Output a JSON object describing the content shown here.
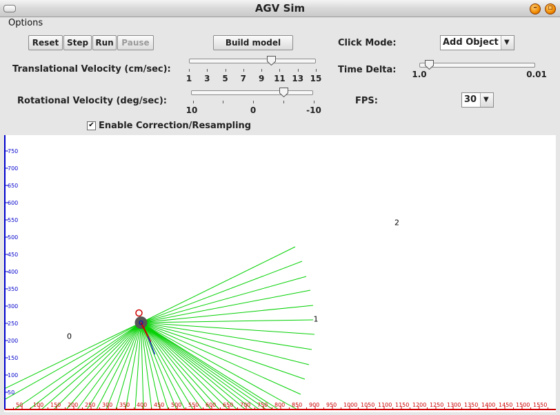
{
  "window": {
    "title": "AGV Sim"
  },
  "menu": {
    "options": "Options"
  },
  "buttons": {
    "reset": "Reset",
    "step": "Step",
    "run": "Run",
    "pause": "Pause",
    "build_model": "Build model"
  },
  "translational": {
    "label": "Translational Velocity (cm/sec):",
    "ticks": [
      "1",
      "3",
      "5",
      "7",
      "9",
      "11",
      "13",
      "15"
    ],
    "value": 10
  },
  "rotational": {
    "label": "Rotational Velocity (deg/sec):",
    "ticks": [
      "10",
      "0",
      "-10"
    ],
    "value": -5
  },
  "click_mode": {
    "label": "Click Mode:",
    "selected": "Add Object"
  },
  "time_delta": {
    "label": "Time Delta:",
    "min_label": "1.0",
    "max_label": "0.01",
    "value": 0.9
  },
  "fps": {
    "label": "FPS:",
    "selected": "30"
  },
  "correction": {
    "label": "Enable Correction/Resampling",
    "checked": true,
    "check_glyph": "✔"
  },
  "icons": {
    "menu": "window-menu-icon",
    "minimize": "minimize-icon",
    "maximize": "maximize-icon",
    "dropdown": "chevron-down-icon"
  },
  "sim": {
    "y_ticks": [
      "750",
      "700",
      "650",
      "600",
      "550",
      "500",
      "450",
      "400",
      "350",
      "300",
      "250",
      "200",
      "150",
      "100",
      "50"
    ],
    "x_ticks": [
      "50",
      "100",
      "150",
      "200",
      "250",
      "300",
      "350",
      "400",
      "450",
      "500",
      "550",
      "600",
      "650",
      "700",
      "750",
      "800",
      "850",
      "900",
      "950",
      "1000",
      "1050",
      "1100",
      "1150",
      "1200",
      "1250",
      "1300",
      "1350",
      "1400",
      "1450",
      "1500",
      "1550"
    ],
    "objects": [
      {
        "id": "0",
        "x": 180,
        "y": 205
      },
      {
        "id": "1",
        "x": 895,
        "y": 255
      },
      {
        "id": "2",
        "x": 1130,
        "y": 535
      }
    ],
    "robot": {
      "x": 395,
      "y": 252
    },
    "colors": {
      "rays": "#00d000",
      "x_axis": "#cc0000",
      "y_axis": "#0000cc",
      "robot": "#555555",
      "marker": "#cc0000"
    }
  }
}
